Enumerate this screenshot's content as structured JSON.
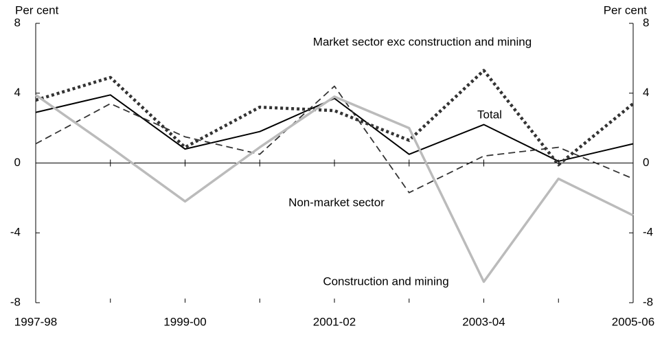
{
  "chart_data": {
    "type": "line",
    "y_label": "Per cent",
    "y2_label": "Per cent",
    "categories": [
      "1997-98",
      null,
      "1999-00",
      null,
      "2001-02",
      null,
      "2003-04",
      null,
      "2005-06"
    ],
    "series": [
      {
        "name": "Total",
        "color": "#000000",
        "style": "solid",
        "values": [
          2.9,
          3.9,
          0.8,
          1.8,
          3.7,
          0.5,
          2.2,
          0.1,
          1.1
        ]
      },
      {
        "name": "Market sector exc construction and mining",
        "color": "#333333",
        "style": "dotted",
        "values": [
          3.6,
          4.9,
          0.9,
          3.2,
          3.0,
          1.3,
          5.3,
          -0.1,
          3.4
        ]
      },
      {
        "name": "Non-market sector",
        "color": "#333333",
        "style": "dashed",
        "values": [
          1.1,
          3.4,
          1.5,
          0.5,
          4.4,
          -1.7,
          0.4,
          0.9,
          -0.9
        ]
      },
      {
        "name": "Construction and mining",
        "color": "#bbbbbb",
        "style": "solid-thick",
        "values": [
          3.9,
          0.9,
          -2.2,
          0.9,
          3.8,
          2.0,
          -6.8,
          -0.9,
          -3.0
        ]
      }
    ],
    "ylim": [
      -8,
      8
    ],
    "yticks": [
      -8,
      -4,
      0,
      4,
      8
    ],
    "y2lim": [
      -8,
      8
    ],
    "y2ticks": [
      -8,
      -4,
      0,
      4,
      8
    ]
  }
}
